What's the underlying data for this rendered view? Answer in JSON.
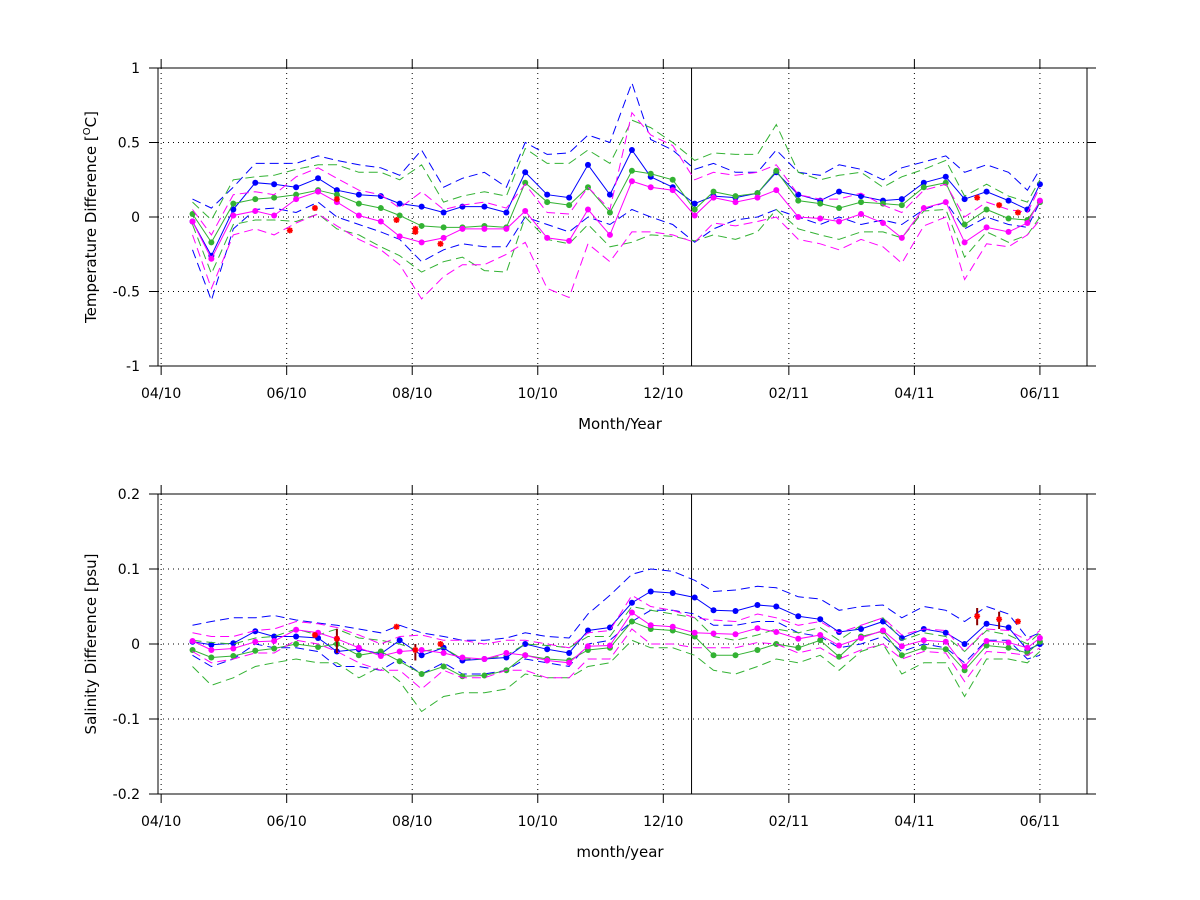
{
  "colors": {
    "blue": "#0000ff",
    "green": "#33b233",
    "magenta": "#ff00ff",
    "red": "#ff0000",
    "darkred": "#8b0000",
    "axis": "#000000"
  },
  "chart_data": [
    {
      "type": "line",
      "xlabel": "Month/Year",
      "ylabel_prefix": "Temperature Difference [",
      "ylabel_sup": "O",
      "ylabel_suffix": "C]",
      "ylim": [
        -1,
        1
      ],
      "yticks": [
        "1",
        "0.5",
        "0",
        "-0.5",
        "-1"
      ],
      "ytick_values": [
        1,
        0.5,
        0,
        -0.5,
        -1
      ],
      "xtick_labels": [
        "04/10",
        "06/10",
        "08/10",
        "10/10",
        "12/10",
        "02/11",
        "04/11",
        "06/11"
      ],
      "xtick_months": [
        0,
        2,
        4,
        6,
        8,
        10,
        12,
        14
      ],
      "xlim_months": [
        -0.05,
        14.75
      ],
      "vertical_line_month": 8.45,
      "grid": true,
      "x_months": [
        0.5,
        0.8,
        1.15,
        1.5,
        1.8,
        2.15,
        2.5,
        2.8,
        3.15,
        3.5,
        3.8,
        4.15,
        4.5,
        4.8,
        5.15,
        5.5,
        5.8,
        6.15,
        6.5,
        6.8,
        7.15,
        7.5,
        7.8,
        8.15,
        8.5,
        8.8,
        9.15,
        9.5,
        9.8,
        10.15,
        10.5,
        10.8,
        11.15,
        11.5,
        11.8,
        12.15,
        12.5,
        12.8,
        13.15,
        13.5,
        13.8,
        14.0
      ],
      "series": [
        {
          "color_key": "blue",
          "mean": [
            -0.03,
            -0.26,
            0.05,
            0.23,
            0.22,
            0.2,
            0.26,
            0.18,
            0.15,
            0.14,
            0.09,
            0.07,
            0.03,
            0.07,
            0.07,
            0.03,
            0.3,
            0.15,
            0.13,
            0.35,
            0.15,
            0.45,
            0.27,
            0.2,
            0.09,
            0.14,
            0.13,
            0.16,
            0.3,
            0.15,
            0.11,
            0.17,
            0.14,
            0.11,
            0.12,
            0.23,
            0.27,
            0.12,
            0.17,
            0.11,
            0.05,
            0.22
          ],
          "upper": [
            0.12,
            0.06,
            0.2,
            0.36,
            0.36,
            0.36,
            0.41,
            0.38,
            0.35,
            0.33,
            0.28,
            0.45,
            0.2,
            0.26,
            0.3,
            0.2,
            0.5,
            0.42,
            0.43,
            0.55,
            0.5,
            0.9,
            0.52,
            0.45,
            0.32,
            0.36,
            0.3,
            0.3,
            0.45,
            0.3,
            0.28,
            0.35,
            0.32,
            0.25,
            0.33,
            0.37,
            0.41,
            0.3,
            0.35,
            0.3,
            0.18,
            0.32
          ],
          "lower": [
            -0.22,
            -0.56,
            -0.08,
            0.05,
            0.06,
            0.03,
            0.1,
            0.0,
            -0.05,
            -0.1,
            -0.15,
            -0.3,
            -0.22,
            -0.18,
            -0.2,
            -0.2,
            0.0,
            -0.05,
            -0.1,
            0.0,
            -0.05,
            0.05,
            0.0,
            -0.05,
            -0.17,
            -0.08,
            -0.02,
            0.0,
            0.05,
            0.0,
            -0.05,
            0.0,
            -0.05,
            -0.02,
            -0.05,
            0.05,
            0.1,
            -0.08,
            0.0,
            -0.05,
            -0.07,
            0.1
          ]
        },
        {
          "color_key": "green",
          "mean": [
            0.02,
            -0.17,
            0.09,
            0.12,
            0.13,
            0.15,
            0.18,
            0.15,
            0.09,
            0.06,
            0.01,
            -0.06,
            -0.07,
            -0.07,
            -0.06,
            -0.07,
            0.23,
            0.1,
            0.08,
            0.2,
            0.03,
            0.31,
            0.29,
            0.25,
            0.05,
            0.17,
            0.14,
            0.16,
            0.31,
            0.11,
            0.09,
            0.06,
            0.1,
            0.09,
            0.08,
            0.2,
            0.23,
            -0.05,
            0.05,
            -0.01,
            -0.02,
            0.1
          ],
          "upper": [
            0.1,
            -0.02,
            0.25,
            0.27,
            0.28,
            0.32,
            0.35,
            0.35,
            0.3,
            0.3,
            0.25,
            0.35,
            0.1,
            0.14,
            0.17,
            0.14,
            0.46,
            0.36,
            0.36,
            0.45,
            0.36,
            0.65,
            0.6,
            0.5,
            0.38,
            0.43,
            0.42,
            0.42,
            0.62,
            0.3,
            0.25,
            0.28,
            0.3,
            0.2,
            0.27,
            0.32,
            0.38,
            0.14,
            0.22,
            0.14,
            0.1,
            0.25
          ],
          "lower": [
            -0.05,
            -0.38,
            -0.05,
            -0.02,
            -0.02,
            -0.03,
            0.02,
            -0.08,
            -0.12,
            -0.2,
            -0.26,
            -0.37,
            -0.3,
            -0.27,
            -0.36,
            -0.37,
            0.0,
            -0.15,
            -0.18,
            -0.05,
            -0.2,
            -0.17,
            -0.12,
            -0.13,
            -0.16,
            -0.12,
            -0.15,
            -0.1,
            0.05,
            -0.08,
            -0.12,
            -0.15,
            -0.1,
            -0.1,
            -0.14,
            0.04,
            0.05,
            -0.27,
            -0.1,
            -0.17,
            -0.12,
            0.0
          ]
        },
        {
          "color_key": "magenta",
          "mean": [
            -0.03,
            -0.28,
            0.01,
            0.04,
            0.01,
            0.12,
            0.17,
            0.1,
            0.01,
            -0.03,
            -0.13,
            -0.17,
            -0.14,
            -0.08,
            -0.08,
            -0.08,
            0.04,
            -0.14,
            -0.16,
            0.05,
            -0.12,
            0.24,
            0.2,
            0.18,
            0.01,
            0.13,
            0.1,
            0.13,
            0.18,
            0.0,
            -0.01,
            -0.03,
            0.02,
            -0.04,
            -0.14,
            0.06,
            0.1,
            -0.17,
            -0.07,
            -0.1,
            -0.04,
            0.11
          ],
          "upper": [
            0.05,
            -0.12,
            0.15,
            0.17,
            0.15,
            0.27,
            0.33,
            0.26,
            0.18,
            0.15,
            0.06,
            0.17,
            0.05,
            0.08,
            0.1,
            0.06,
            0.22,
            0.03,
            0.02,
            0.2,
            0.05,
            0.7,
            0.55,
            0.48,
            0.25,
            0.3,
            0.28,
            0.3,
            0.35,
            0.15,
            0.12,
            0.12,
            0.16,
            0.08,
            0.03,
            0.18,
            0.22,
            0.0,
            0.1,
            0.05,
            0.03,
            0.2
          ],
          "lower": [
            -0.12,
            -0.48,
            -0.12,
            -0.08,
            -0.12,
            -0.04,
            0.02,
            -0.06,
            -0.15,
            -0.22,
            -0.32,
            -0.55,
            -0.4,
            -0.32,
            -0.32,
            -0.25,
            -0.17,
            -0.48,
            -0.54,
            -0.18,
            -0.3,
            -0.1,
            -0.1,
            -0.12,
            -0.17,
            -0.04,
            -0.06,
            -0.03,
            0.0,
            -0.15,
            -0.18,
            -0.22,
            -0.15,
            -0.2,
            -0.31,
            -0.06,
            0.0,
            -0.42,
            -0.18,
            -0.2,
            -0.12,
            -0.02
          ]
        }
      ],
      "red_points": [
        {
          "x": 2.05,
          "y": -0.09
        },
        {
          "x": 2.45,
          "y": 0.06
        },
        {
          "x": 2.8,
          "y": 0.12
        },
        {
          "x": 3.75,
          "y": -0.02
        },
        {
          "x": 4.05,
          "y": -0.08
        },
        {
          "x": 4.05,
          "y": -0.1
        },
        {
          "x": 4.45,
          "y": -0.18
        },
        {
          "x": 13.0,
          "y": 0.13
        },
        {
          "x": 13.35,
          "y": 0.08
        },
        {
          "x": 13.65,
          "y": 0.03
        }
      ],
      "red_bars": []
    },
    {
      "type": "line",
      "xlabel": "month/year",
      "ylabel": "Salinity Difference [psu]",
      "ylim": [
        -0.2,
        0.2
      ],
      "yticks": [
        "0.2",
        "0.1",
        "0",
        "-0.1",
        "-0.2"
      ],
      "ytick_values": [
        0.2,
        0.1,
        0,
        -0.1,
        -0.2
      ],
      "xtick_labels": [
        "04/10",
        "06/10",
        "08/10",
        "10/10",
        "12/10",
        "02/11",
        "04/11",
        "06/11"
      ],
      "xtick_months": [
        0,
        2,
        4,
        6,
        8,
        10,
        12,
        14
      ],
      "xlim_months": [
        -0.05,
        14.75
      ],
      "vertical_line_month": 8.45,
      "grid": true,
      "x_months": [
        0.5,
        0.8,
        1.15,
        1.5,
        1.8,
        2.15,
        2.5,
        2.8,
        3.15,
        3.5,
        3.8,
        4.15,
        4.5,
        4.8,
        5.15,
        5.5,
        5.8,
        6.15,
        6.5,
        6.8,
        7.15,
        7.5,
        7.8,
        8.15,
        8.5,
        8.8,
        9.15,
        9.5,
        9.8,
        10.15,
        10.5,
        10.8,
        11.15,
        11.5,
        11.8,
        12.15,
        12.5,
        12.8,
        13.15,
        13.5,
        13.8,
        14.0
      ],
      "series": [
        {
          "color_key": "blue",
          "mean": [
            0.003,
            -0.001,
            0.001,
            0.017,
            0.01,
            0.01,
            0.008,
            -0.01,
            -0.007,
            -0.013,
            0.005,
            -0.015,
            -0.005,
            -0.022,
            -0.02,
            -0.018,
            0.0,
            -0.007,
            -0.012,
            0.018,
            0.022,
            0.055,
            0.07,
            0.068,
            0.062,
            0.045,
            0.044,
            0.052,
            0.05,
            0.037,
            0.033,
            0.016,
            0.02,
            0.03,
            0.008,
            0.02,
            0.015,
            0.0,
            0.027,
            0.022,
            -0.008,
            0.0
          ],
          "upper": [
            0.025,
            0.03,
            0.035,
            0.035,
            0.038,
            0.032,
            0.028,
            0.025,
            0.02,
            0.015,
            0.025,
            0.015,
            0.01,
            0.005,
            0.005,
            0.008,
            0.015,
            0.01,
            0.008,
            0.04,
            0.065,
            0.093,
            0.1,
            0.097,
            0.085,
            0.07,
            0.072,
            0.077,
            0.075,
            0.063,
            0.06,
            0.045,
            0.05,
            0.052,
            0.035,
            0.05,
            0.045,
            0.03,
            0.05,
            0.04,
            0.008,
            0.015
          ],
          "lower": [
            -0.015,
            -0.03,
            -0.02,
            0.0,
            -0.005,
            -0.005,
            -0.01,
            -0.03,
            -0.03,
            -0.035,
            -0.02,
            -0.04,
            -0.025,
            -0.04,
            -0.04,
            -0.035,
            -0.02,
            -0.025,
            -0.03,
            0.0,
            0.005,
            0.03,
            0.045,
            0.045,
            0.04,
            0.025,
            0.025,
            0.03,
            0.03,
            0.015,
            0.01,
            -0.005,
            0.0,
            0.01,
            -0.01,
            0.0,
            -0.005,
            -0.025,
            0.005,
            0.005,
            -0.02,
            -0.015
          ]
        },
        {
          "color_key": "green",
          "mean": [
            -0.008,
            -0.018,
            -0.016,
            -0.009,
            -0.006,
            0.0,
            -0.004,
            0.0,
            -0.015,
            -0.01,
            -0.023,
            -0.04,
            -0.03,
            -0.043,
            -0.042,
            -0.035,
            -0.015,
            -0.02,
            -0.022,
            -0.008,
            -0.005,
            0.03,
            0.02,
            0.018,
            0.01,
            -0.015,
            -0.015,
            -0.008,
            0.0,
            -0.005,
            0.005,
            -0.017,
            0.01,
            0.017,
            -0.015,
            -0.005,
            -0.007,
            -0.035,
            -0.002,
            -0.005,
            -0.012,
            0.003
          ],
          "upper": [
            0.005,
            0.002,
            0.0,
            0.008,
            0.01,
            0.02,
            0.012,
            0.02,
            0.008,
            0.005,
            0.0,
            -0.01,
            -0.005,
            -0.02,
            -0.02,
            -0.015,
            0.0,
            -0.002,
            -0.005,
            0.01,
            0.01,
            0.05,
            0.045,
            0.04,
            0.035,
            0.01,
            0.005,
            0.012,
            0.02,
            0.015,
            0.022,
            0.005,
            0.025,
            0.035,
            0.005,
            0.015,
            0.01,
            -0.01,
            0.018,
            0.012,
            0.0,
            0.015
          ],
          "lower": [
            -0.03,
            -0.055,
            -0.045,
            -0.03,
            -0.025,
            -0.02,
            -0.025,
            -0.025,
            -0.045,
            -0.03,
            -0.05,
            -0.09,
            -0.07,
            -0.065,
            -0.065,
            -0.06,
            -0.04,
            -0.045,
            -0.045,
            -0.03,
            -0.025,
            0.005,
            -0.005,
            -0.005,
            -0.015,
            -0.035,
            -0.04,
            -0.03,
            -0.02,
            -0.025,
            -0.015,
            -0.035,
            -0.01,
            0.0,
            -0.04,
            -0.025,
            -0.025,
            -0.07,
            -0.02,
            -0.02,
            -0.025,
            -0.01
          ]
        },
        {
          "color_key": "magenta",
          "mean": [
            0.004,
            -0.008,
            -0.006,
            0.003,
            0.004,
            0.019,
            0.015,
            0.007,
            -0.005,
            -0.016,
            -0.01,
            -0.008,
            -0.012,
            -0.018,
            -0.02,
            -0.012,
            -0.015,
            -0.022,
            -0.025,
            -0.003,
            -0.002,
            0.042,
            0.025,
            0.023,
            0.015,
            0.014,
            0.013,
            0.021,
            0.016,
            0.007,
            0.012,
            -0.002,
            0.008,
            0.018,
            -0.003,
            0.005,
            0.003,
            -0.03,
            0.004,
            0.002,
            -0.005,
            0.008
          ],
          "upper": [
            0.015,
            0.01,
            0.01,
            0.018,
            0.02,
            0.03,
            0.027,
            0.022,
            0.012,
            0.0,
            0.01,
            0.012,
            0.005,
            0.005,
            0.0,
            0.005,
            0.005,
            0.0,
            -0.005,
            0.015,
            0.018,
            0.065,
            0.05,
            0.045,
            0.035,
            0.032,
            0.03,
            0.04,
            0.035,
            0.025,
            0.03,
            0.015,
            0.025,
            0.035,
            0.012,
            0.02,
            0.018,
            -0.01,
            0.02,
            0.018,
            0.005,
            0.018
          ],
          "lower": [
            -0.01,
            -0.025,
            -0.02,
            -0.012,
            -0.012,
            0.005,
            0.0,
            -0.01,
            -0.025,
            -0.035,
            -0.035,
            -0.06,
            -0.035,
            -0.045,
            -0.045,
            -0.035,
            -0.035,
            -0.045,
            -0.045,
            -0.02,
            -0.02,
            0.02,
            0.0,
            0.0,
            -0.005,
            -0.005,
            -0.005,
            0.002,
            0.0,
            -0.012,
            -0.005,
            -0.02,
            -0.008,
            0.0,
            -0.02,
            -0.01,
            -0.012,
            -0.05,
            -0.01,
            -0.012,
            -0.015,
            -0.005
          ]
        }
      ],
      "red_points": [
        {
          "x": 2.45,
          "y": 0.012
        },
        {
          "x": 2.8,
          "y": 0.007
        },
        {
          "x": 3.75,
          "y": 0.023
        },
        {
          "x": 4.05,
          "y": -0.008
        },
        {
          "x": 4.45,
          "y": 0.0
        },
        {
          "x": 13.0,
          "y": 0.037
        },
        {
          "x": 13.35,
          "y": 0.033
        },
        {
          "x": 13.65,
          "y": 0.03
        }
      ],
      "red_bars": [
        {
          "x": 2.8,
          "y0": -0.012,
          "y1": 0.02
        },
        {
          "x": 4.05,
          "y0": -0.022,
          "y1": 0.0
        },
        {
          "x": 13.0,
          "y0": 0.025,
          "y1": 0.048
        },
        {
          "x": 13.35,
          "y0": 0.02,
          "y1": 0.043
        }
      ]
    }
  ]
}
